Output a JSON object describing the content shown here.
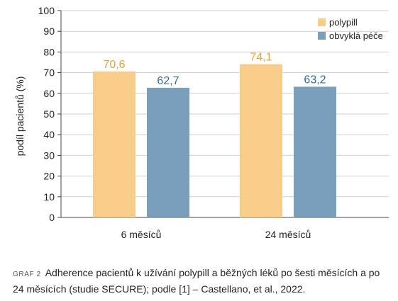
{
  "chart_data": {
    "type": "bar",
    "categories": [
      "6 měsíců",
      "24 měsíců"
    ],
    "series": [
      {
        "name": "polypill",
        "values": [
          70.6,
          74.1
        ],
        "labels": [
          "70,6",
          "74,1"
        ],
        "color": "#f8cd8a",
        "label_color": "#e2a339"
      },
      {
        "name": "obvyklá péče",
        "values": [
          62.7,
          63.2
        ],
        "labels": [
          "62,7",
          "63,2"
        ],
        "color": "#7a9fbb",
        "label_color": "#2d6f8e"
      }
    ],
    "ylabel": "podíl pacientů (%)",
    "ylim": [
      0,
      100
    ],
    "yticks": [
      0,
      10,
      20,
      30,
      40,
      50,
      60,
      70,
      80,
      90,
      100
    ],
    "grid": true,
    "legend": "top-right"
  },
  "caption": {
    "tag": "GRAF 2",
    "text": "Adherence pacientů k užívání polypill a běžných léků po šesti měsících a po 24 měsících (studie SECURE); podle [1] – Castellano, et al., 2022."
  }
}
